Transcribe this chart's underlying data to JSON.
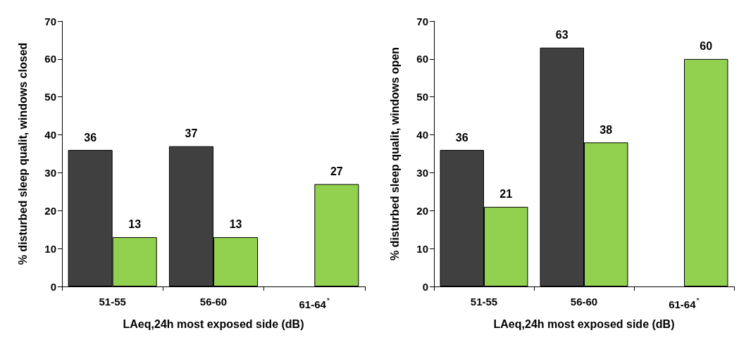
{
  "chart_data": [
    {
      "type": "bar",
      "categories": [
        "51-55",
        "56-60",
        "61-64$^{*}$"
      ],
      "xlabel": "LAeq,24h most exposed side (dB)",
      "ylabel": "% disturbed sleep qualit, windows closed",
      "ylim": [
        0,
        70
      ],
      "yticks": [
        0,
        10,
        20,
        30,
        40,
        50,
        60,
        70
      ],
      "data_labels": true,
      "grid": false,
      "series": [
        {
          "color": "#404040",
          "values": [
            36,
            37,
            null
          ]
        },
        {
          "color": "#92d050",
          "values": [
            13,
            13,
            27
          ]
        }
      ]
    },
    {
      "type": "bar",
      "categories": [
        "51-55",
        "56-60",
        "61-64$^{*}$"
      ],
      "xlabel": "LAeq,24h most exposed side (dB)",
      "ylabel": "% disturbed sleep qualit, windows open",
      "ylim": [
        0,
        70
      ],
      "yticks": [
        0,
        10,
        20,
        30,
        40,
        50,
        60,
        70
      ],
      "data_labels": true,
      "grid": false,
      "series": [
        {
          "color": "#404040",
          "values": [
            36,
            63,
            null
          ]
        },
        {
          "color": "#92d050",
          "values": [
            21,
            38,
            60
          ]
        }
      ]
    }
  ]
}
